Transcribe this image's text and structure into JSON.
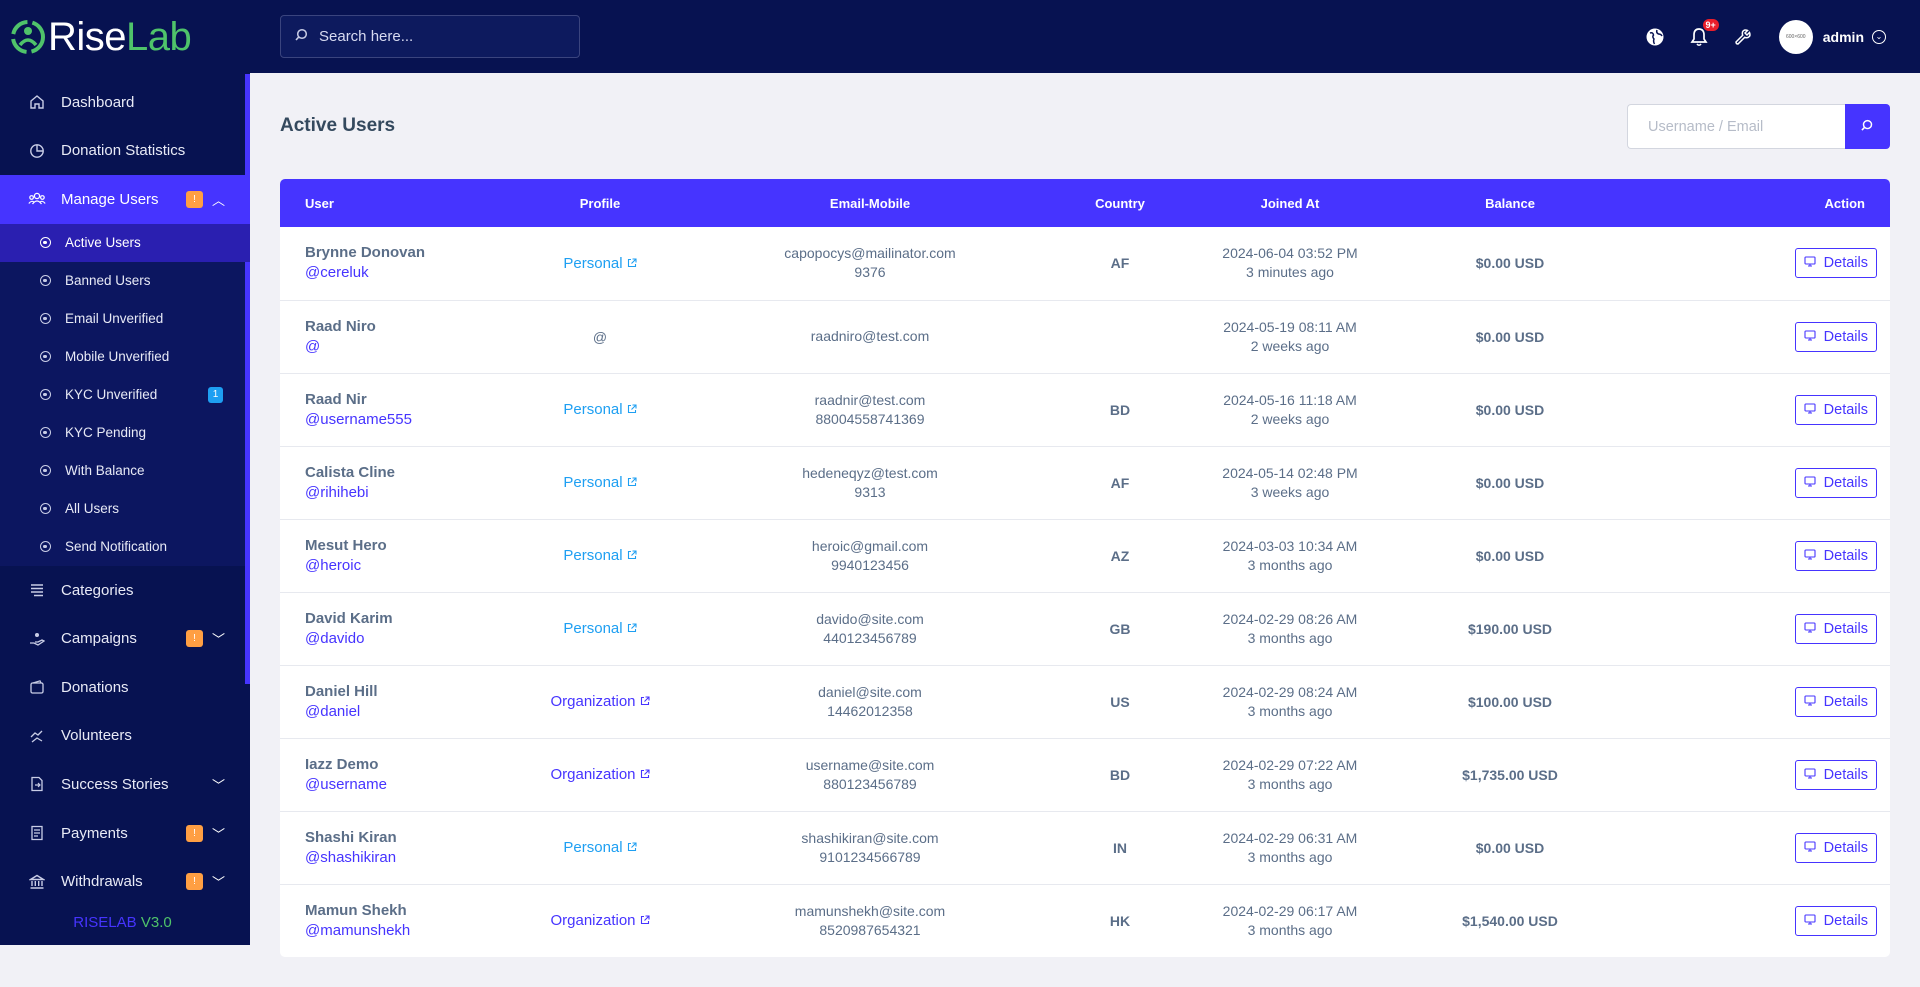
{
  "brand": {
    "name_rise": "Rise",
    "name_lab": "Lab",
    "version_name": "RISELAB",
    "version_num": "V3.0"
  },
  "topbar": {
    "search_placeholder": "Search here...",
    "notification_count": "9+",
    "avatar_text": "600×600",
    "admin_name": "admin",
    "icons": [
      "globe-icon",
      "bell-icon",
      "wrench-icon",
      "chevron-circle-down-icon"
    ]
  },
  "sidebar": {
    "items": [
      {
        "label": "Dashboard",
        "icon": "home-icon"
      },
      {
        "label": "Donation Statistics",
        "icon": "pie-chart-icon"
      },
      {
        "label": "Manage Users",
        "icon": "users-icon",
        "badge": "!",
        "expanded": true
      },
      {
        "label": "Categories",
        "icon": "list-icon"
      },
      {
        "label": "Campaigns",
        "icon": "hand-holding-icon",
        "badge": "!"
      },
      {
        "label": "Donations",
        "icon": "wallet-icon"
      },
      {
        "label": "Volunteers",
        "icon": "hands-helping-icon"
      },
      {
        "label": "Success Stories",
        "icon": "file-export-icon"
      },
      {
        "label": "Payments",
        "icon": "invoice-icon",
        "badge": "!"
      },
      {
        "label": "Withdrawals",
        "icon": "bank-icon",
        "badge": "!"
      }
    ],
    "submenu": [
      {
        "label": "Active Users"
      },
      {
        "label": "Banned Users"
      },
      {
        "label": "Email Unverified"
      },
      {
        "label": "Mobile Unverified"
      },
      {
        "label": "KYC Unverified",
        "badge": "1"
      },
      {
        "label": "KYC Pending"
      },
      {
        "label": "With Balance"
      },
      {
        "label": "All Users"
      },
      {
        "label": "Send Notification"
      }
    ]
  },
  "main": {
    "title": "Active Users",
    "search_placeholder": "Username / Email",
    "columns": [
      "User",
      "Profile",
      "Email-Mobile",
      "Country",
      "Joined At",
      "Balance",
      "Action"
    ],
    "details_label": "Details",
    "rows": [
      {
        "name": "Brynne Donovan",
        "handle": "@cereluk",
        "profile": "Personal",
        "email": "capopocys@mailinator.com",
        "mobile": "9376",
        "country": "AF",
        "joined": "2024-06-04 03:52 PM",
        "ago": "3 minutes ago",
        "balance": "$0.00 USD"
      },
      {
        "name": "Raad Niro",
        "handle": "@",
        "profile": "@",
        "email": "raadniro@test.com",
        "mobile": "",
        "country": "",
        "joined": "2024-05-19 08:11 AM",
        "ago": "2 weeks ago",
        "balance": "$0.00 USD"
      },
      {
        "name": "Raad Nir",
        "handle": "@username555",
        "profile": "Personal",
        "email": "raadnir@test.com",
        "mobile": "88004558741369",
        "country": "BD",
        "joined": "2024-05-16 11:18 AM",
        "ago": "2 weeks ago",
        "balance": "$0.00 USD"
      },
      {
        "name": "Calista Cline",
        "handle": "@rihihebi",
        "profile": "Personal",
        "email": "hedeneqyz@test.com",
        "mobile": "9313",
        "country": "AF",
        "joined": "2024-05-14 02:48 PM",
        "ago": "3 weeks ago",
        "balance": "$0.00 USD"
      },
      {
        "name": "Mesut Hero",
        "handle": "@heroic",
        "profile": "Personal",
        "email": "heroic@gmail.com",
        "mobile": "9940123456",
        "country": "AZ",
        "joined": "2024-03-03 10:34 AM",
        "ago": "3 months ago",
        "balance": "$0.00 USD"
      },
      {
        "name": "David Karim",
        "handle": "@davido",
        "profile": "Personal",
        "email": "davido@site.com",
        "mobile": "440123456789",
        "country": "GB",
        "joined": "2024-02-29 08:26 AM",
        "ago": "3 months ago",
        "balance": "$190.00 USD"
      },
      {
        "name": "Daniel Hill",
        "handle": "@daniel",
        "profile": "Organization",
        "email": "daniel@site.com",
        "mobile": "14462012358",
        "country": "US",
        "joined": "2024-02-29 08:24 AM",
        "ago": "3 months ago",
        "balance": "$100.00 USD"
      },
      {
        "name": "Iazz Demo",
        "handle": "@username",
        "profile": "Organization",
        "email": "username@site.com",
        "mobile": "880123456789",
        "country": "BD",
        "joined": "2024-02-29 07:22 AM",
        "ago": "3 months ago",
        "balance": "$1,735.00 USD"
      },
      {
        "name": "Shashi Kiran",
        "handle": "@shashikiran",
        "profile": "Personal",
        "email": "shashikiran@site.com",
        "mobile": "9101234566789",
        "country": "IN",
        "joined": "2024-02-29 06:31 AM",
        "ago": "3 months ago",
        "balance": "$0.00 USD"
      },
      {
        "name": "Mamun Shekh",
        "handle": "@mamunshekh",
        "profile": "Organization",
        "email": "mamunshekh@site.com",
        "mobile": "8520987654321",
        "country": "HK",
        "joined": "2024-02-29 06:17 AM",
        "ago": "3 months ago",
        "balance": "$1,540.00 USD"
      }
    ]
  },
  "colors": {
    "primary": "#4634ff",
    "sidebar_bg": "#071251",
    "brand_green": "#4fc36a",
    "warning": "#ff9f43",
    "info": "#1e9ff2",
    "danger": "#ea1e2a"
  }
}
